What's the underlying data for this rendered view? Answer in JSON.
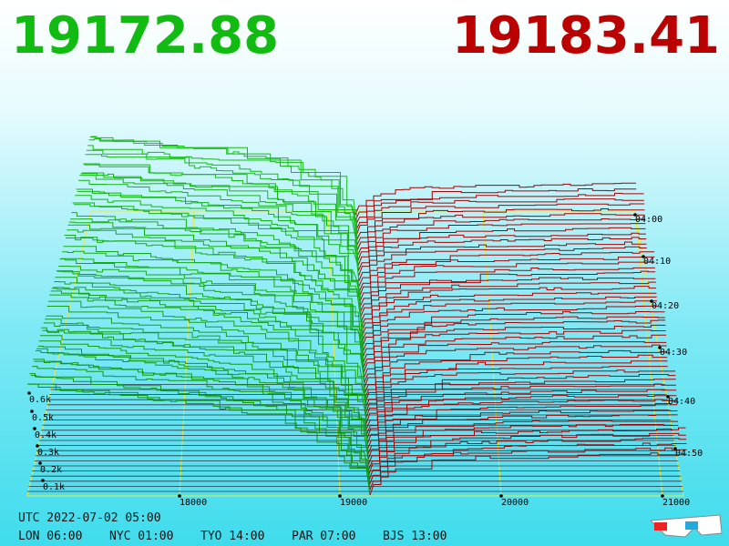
{
  "header": {
    "bid": "19172.88",
    "ask": "19183.41"
  },
  "price_axis": {
    "labels": [
      "18000",
      "19000",
      "20000",
      "21000"
    ]
  },
  "depth_axis": {
    "labels": [
      "0.6k",
      "0.5k",
      "0.4k",
      "0.3k",
      "0.2k",
      "0.1k"
    ]
  },
  "time_axis": {
    "labels": [
      "04:00",
      "04:10",
      "04:20",
      "04:30",
      "04:40",
      "04:50"
    ]
  },
  "footer": {
    "utc": "UTC 2022-07-02 05:00",
    "clocks": [
      "LON 06:00",
      "NYC 01:00",
      "TYO 14:00",
      "PAR 07:00",
      "BJS 13:00"
    ]
  }
}
